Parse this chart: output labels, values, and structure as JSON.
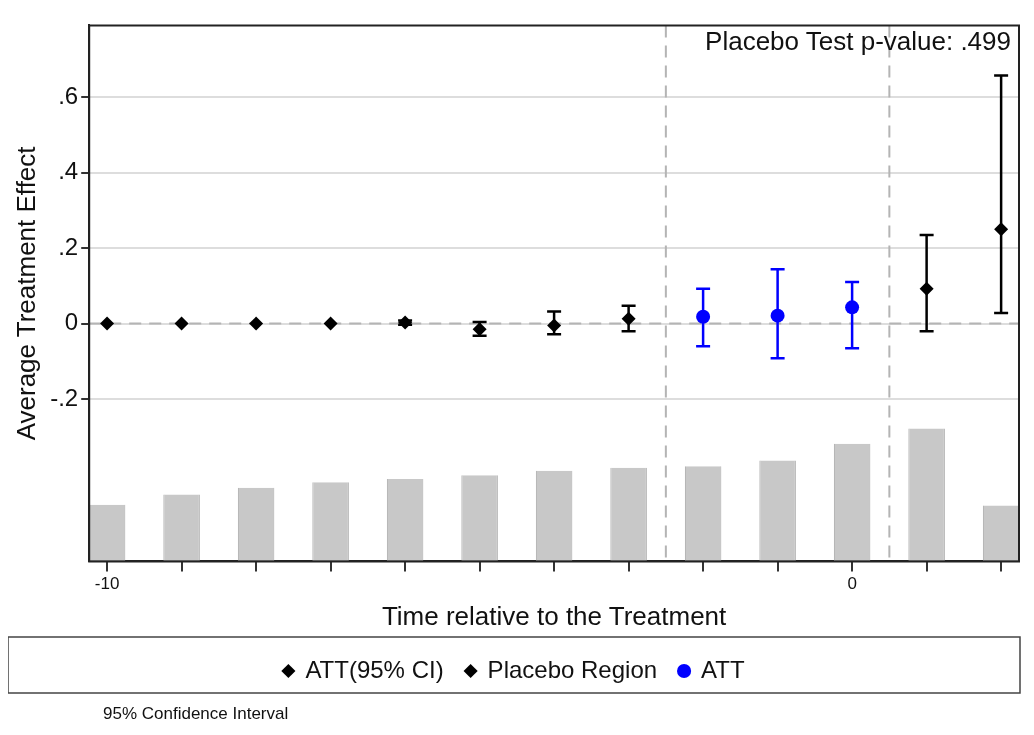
{
  "chart_data": {
    "type": "scatter",
    "xlabel": "Time relative to the Treatment",
    "ylabel": "Average Treatment Effect",
    "annotations": [
      "Placebo Test p-value: .499",
      "95% Confidence Interval"
    ],
    "xlim": [
      -10.24,
      2.24
    ],
    "ylim": [
      -0.63,
      0.79
    ],
    "xticks": [
      {
        "value": -10,
        "label": "-10"
      },
      {
        "value": -9,
        "label": null
      },
      {
        "value": -8,
        "label": null
      },
      {
        "value": -7,
        "label": null
      },
      {
        "value": -6,
        "label": null
      },
      {
        "value": -5,
        "label": null
      },
      {
        "value": -4,
        "label": null
      },
      {
        "value": -3,
        "label": null
      },
      {
        "value": -2,
        "label": null
      },
      {
        "value": -1,
        "label": null
      },
      0,
      {
        "value": 1,
        "label": null
      },
      {
        "value": 2,
        "label": null
      }
    ],
    "yticks": [
      {
        "value": -0.2,
        "label": "-.2"
      },
      0,
      {
        "value": 0.2,
        "label": ".2"
      },
      {
        "value": 0.4,
        "label": ".4"
      },
      {
        "value": 0.6,
        "label": ".6"
      }
    ],
    "grid": "y",
    "legend": "bottom",
    "ref_lines": [
      {
        "axis": "y",
        "value": 0,
        "color": "#b4b4b4",
        "line_style": "dashed"
      },
      {
        "axis": "x",
        "value": -2.5,
        "color": "#b4b4b4",
        "line_style": "dashed"
      },
      {
        "axis": "x",
        "value": 0.5,
        "color": "#b4b4b4",
        "line_style": "dashed"
      }
    ],
    "series": [
      {
        "type": "bar",
        "color": "#c8c8c8",
        "x": [
          -10,
          -9,
          -8,
          -7,
          -6,
          -5,
          -4,
          -3,
          -2,
          -1,
          0,
          1,
          2
        ],
        "base": [
          -0.63,
          -0.63,
          -0.63,
          -0.63,
          -0.63,
          -0.63,
          -0.63,
          -0.63,
          -0.63,
          -0.63,
          -0.63,
          -0.63,
          -0.63
        ],
        "values": [
          0.15,
          0.177,
          0.195,
          0.21,
          0.218,
          0.228,
          0.24,
          0.248,
          0.252,
          0.267,
          0.312,
          0.352,
          0.148
        ]
      },
      {
        "name": "ATT(95% CI)",
        "color": "#000000",
        "marker": "diamond",
        "x": [
          1,
          2
        ],
        "values": [
          0.092,
          0.25
        ],
        "errors": [
          [
            -0.02,
            0.235
          ],
          [
            0.028,
            0.657
          ]
        ]
      },
      {
        "name": "Placebo Region",
        "color": "#000000",
        "marker": "diamond",
        "x": [
          -10,
          -9,
          -8,
          -7,
          -6,
          -5,
          -4,
          -3
        ],
        "values": [
          0,
          0,
          0,
          0,
          0.003,
          -0.015,
          -0.005,
          0.013
        ],
        "errors": [
          null,
          null,
          null,
          null,
          [
            -0.003,
            0.008
          ],
          [
            -0.032,
            0.004
          ],
          [
            -0.028,
            0.032
          ],
          [
            -0.02,
            0.047
          ]
        ]
      },
      {
        "name": "ATT",
        "color": "#0000ff",
        "marker": "circle",
        "x": [
          -2,
          -1,
          0
        ],
        "values": [
          0.018,
          0.021,
          0.043
        ],
        "errors": [
          [
            -0.06,
            0.092
          ],
          [
            -0.092,
            0.144
          ],
          [
            -0.065,
            0.11
          ]
        ]
      }
    ]
  }
}
